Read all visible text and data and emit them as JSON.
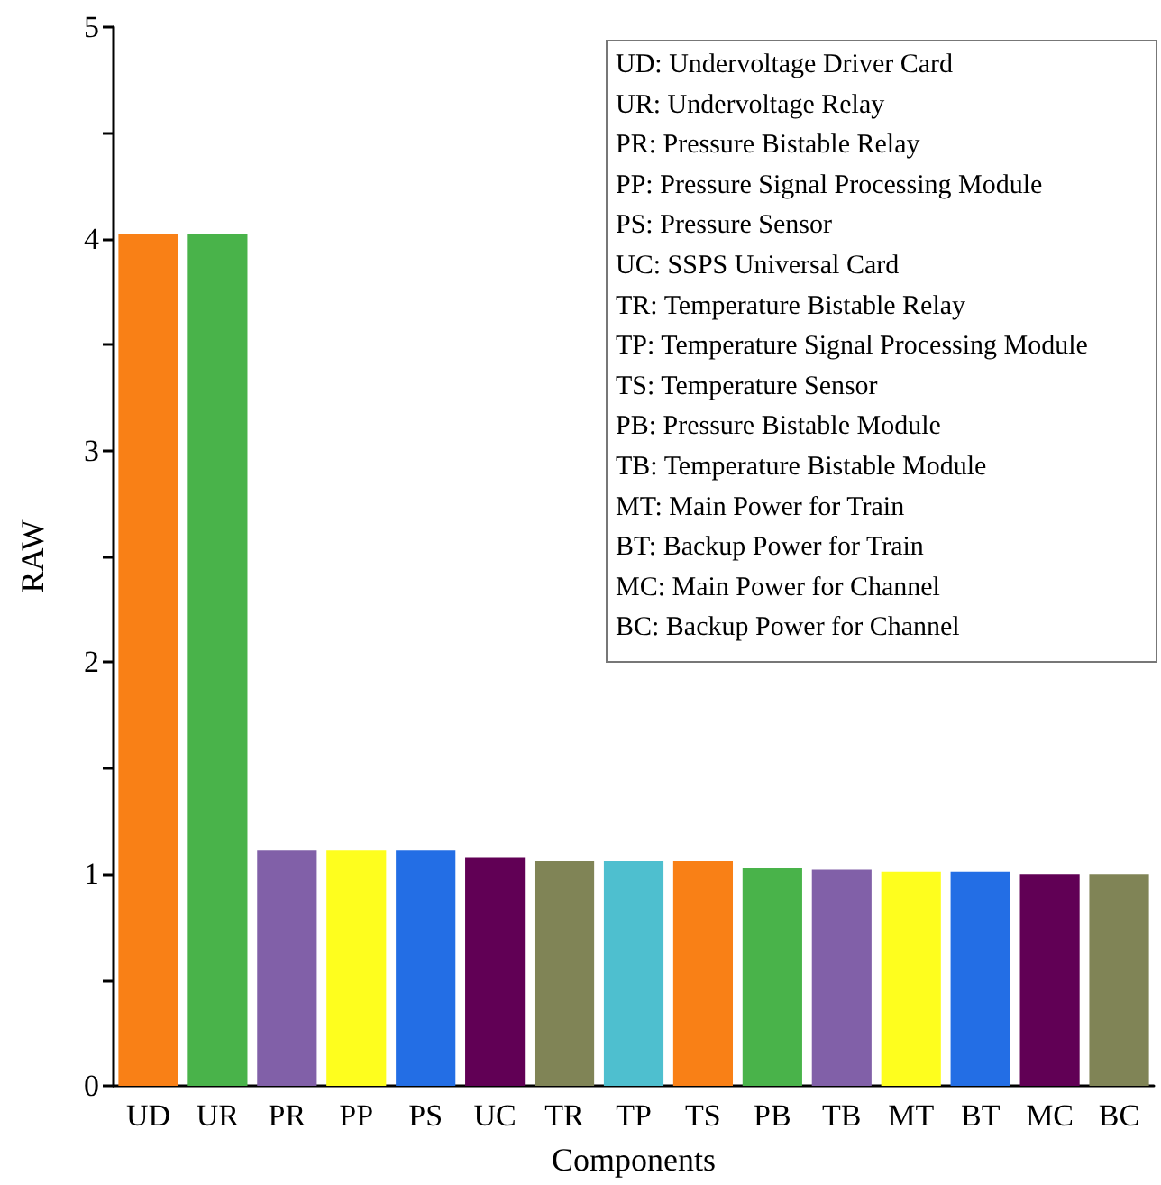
{
  "chart_data": {
    "type": "bar",
    "xlabel": "Components",
    "ylabel": "RAW",
    "categories": [
      "UD",
      "UR",
      "PR",
      "PP",
      "PS",
      "UC",
      "TR",
      "TP",
      "TS",
      "PB",
      "TB",
      "MT",
      "BT",
      "MC",
      "BC"
    ],
    "values": [
      4.02,
      4.02,
      1.11,
      1.11,
      1.11,
      1.08,
      1.06,
      1.06,
      1.06,
      1.03,
      1.02,
      1.01,
      1.01,
      1.0,
      1.0
    ],
    "colors": [
      "#f98016",
      "#49b34a",
      "#8160a8",
      "#fefe1e",
      "#236ee5",
      "#610055",
      "#808456",
      "#4ebfcf",
      "#f98016",
      "#49b34a",
      "#8160a8",
      "#fefe1e",
      "#236ee5",
      "#610055",
      "#808456"
    ],
    "ylim": [
      0,
      5
    ],
    "yticks": [
      0,
      {
        "value": 0.5,
        "label": null
      },
      1,
      {
        "value": 1.5,
        "label": null
      },
      2,
      {
        "value": 2.5,
        "label": null
      },
      3,
      {
        "value": 3.5,
        "label": null
      },
      4,
      {
        "value": 4.5,
        "label": null
      },
      5
    ],
    "grid": false,
    "annotations": [
      "UD: Undervoltage Driver Card",
      "UR: Undervoltage Relay",
      "PR: Pressure Bistable Relay",
      "PP: Pressure Signal Processing Module",
      "PS: Pressure Sensor",
      "UC: SSPS Universal Card",
      "TR: Temperature Bistable Relay",
      "TP: Temperature Signal Processing Module",
      "TS: Temperature Sensor",
      "PB: Pressure Bistable Module",
      "TB: Temperature Bistable Module",
      "MT: Main Power for Train",
      "BT: Backup Power for Train",
      "MC: Main Power for Channel",
      "BC: Backup Power for Channel"
    ]
  }
}
